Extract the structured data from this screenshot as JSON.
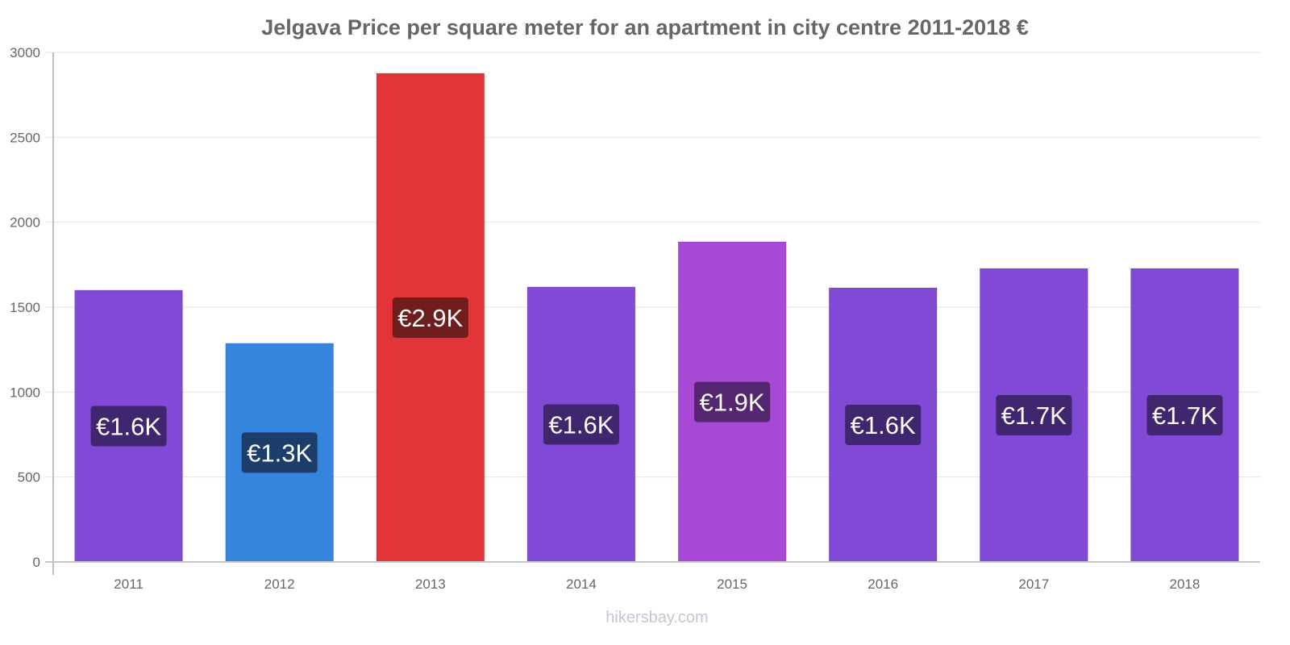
{
  "chart_data": {
    "type": "bar",
    "title": "Jelgava Price per square meter for an apartment in city centre 2011-2018 €",
    "xlabel": "",
    "ylabel": "",
    "categories": [
      "2011",
      "2012",
      "2013",
      "2014",
      "2015",
      "2016",
      "2017",
      "2018"
    ],
    "values": [
      1600,
      1287,
      2877,
      1619,
      1885,
      1614,
      1728,
      1728
    ],
    "data_labels": [
      "€1.6K",
      "€1.3K",
      "€2.9K",
      "€1.6K",
      "€1.9K",
      "€1.6K",
      "€1.7K",
      "€1.7K"
    ],
    "bar_colors": [
      "#8049d6",
      "#3584de",
      "#e13537",
      "#8049d6",
      "#a849d6",
      "#8049d6",
      "#8049d6",
      "#8049d6"
    ],
    "label_bg_colors": [
      "#40266f",
      "#1d3e6b",
      "#701d1e",
      "#40266f",
      "#53266f",
      "#40266f",
      "#40266f",
      "#40266f"
    ],
    "ylim": [
      0,
      3000
    ],
    "yticks": [
      0,
      500,
      1000,
      1500,
      2000,
      2500,
      3000
    ],
    "grid": true,
    "legend": "none"
  },
  "watermark": "hikersbay.com"
}
